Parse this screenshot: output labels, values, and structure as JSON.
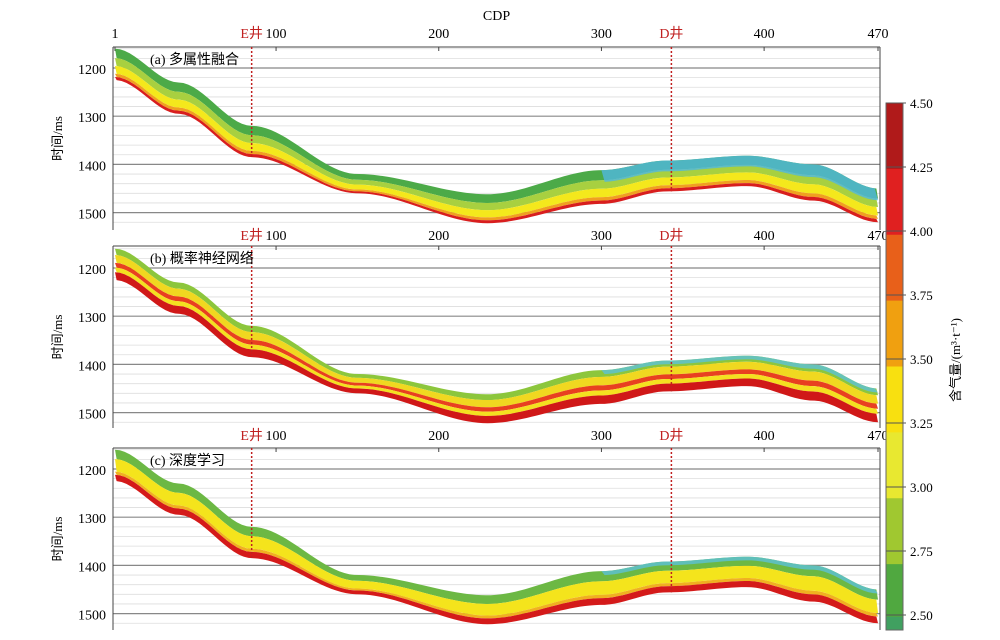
{
  "chart_data": {
    "type": "heatmap",
    "xlabel": "CDP",
    "ylabel": "时间/ms",
    "x_ticks": [
      1,
      100,
      200,
      300,
      400,
      470
    ],
    "x_range": [
      1,
      470
    ],
    "y_ticks": [
      1200,
      1300,
      1400,
      1500
    ],
    "wells": [
      {
        "name": "E井",
        "cdp": 85
      },
      {
        "name": "D井",
        "cdp": 343
      }
    ],
    "panels": [
      {
        "title": "(a) 多属性融合"
      },
      {
        "title": "(b) 概率神经网络"
      },
      {
        "title": "(c) 深度学习"
      }
    ],
    "colorbar": {
      "label": "含气量/(m³·t⁻¹)",
      "ticks": [
        "4.50",
        "4.25",
        "4.00",
        "3.75",
        "3.50",
        "3.25",
        "3.00",
        "2.75",
        "2.50"
      ],
      "range": [
        2.5,
        4.5
      ],
      "colors": [
        "#b01a1a",
        "#e02020",
        "#e8601a",
        "#f0a010",
        "#f8e010",
        "#e8e830",
        "#a0c830",
        "#50a840",
        "#40a060"
      ]
    },
    "grid": true
  }
}
